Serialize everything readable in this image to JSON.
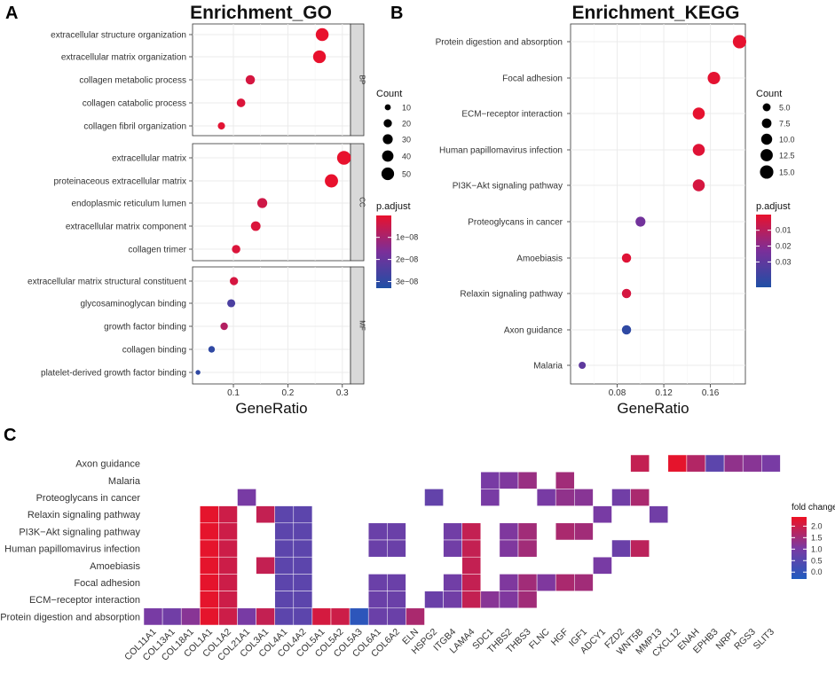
{
  "chart_data": [
    {
      "panel": "A",
      "type": "scatter",
      "title": "Enrichment_GO",
      "xlabel": "GeneRatio",
      "xlim": [
        0.025,
        0.315
      ],
      "xticks": [
        0.1,
        0.2,
        0.3
      ],
      "xtick_labels": [
        "0.1",
        "0.2",
        "0.3"
      ],
      "facets": [
        {
          "name": "BP",
          "terms": [
            {
              "label": "extracellular structure organization",
              "ratio": 0.263,
              "count": 52,
              "padj": 1e-10
            },
            {
              "label": "extracellular matrix organization",
              "ratio": 0.258,
              "count": 51,
              "padj": 1e-10
            },
            {
              "label": "collagen metabolic process",
              "ratio": 0.131,
              "count": 26,
              "padj": 3e-09
            },
            {
              "label": "collagen catabolic process",
              "ratio": 0.114,
              "count": 22,
              "padj": 2e-09
            },
            {
              "label": "collagen fibril organization",
              "ratio": 0.078,
              "count": 15,
              "padj": 1e-09
            }
          ]
        },
        {
          "name": "CC",
          "terms": [
            {
              "label": "extracellular matrix",
              "ratio": 0.303,
              "count": 60,
              "padj": 1e-10
            },
            {
              "label": "proteinaceous extracellular matrix",
              "ratio": 0.28,
              "count": 55,
              "padj": 1e-10
            },
            {
              "label": "endoplasmic reticulum lumen",
              "ratio": 0.153,
              "count": 30,
              "padj": 4e-09
            },
            {
              "label": "extracellular matrix component",
              "ratio": 0.141,
              "count": 28,
              "padj": 2e-09
            },
            {
              "label": "collagen trimer",
              "ratio": 0.105,
              "count": 21,
              "padj": 2e-09
            }
          ]
        },
        {
          "name": "MF",
          "terms": [
            {
              "label": "extracellular matrix structural constituent",
              "ratio": 0.101,
              "count": 20,
              "padj": 3e-09
            },
            {
              "label": "glycosaminoglycan binding",
              "ratio": 0.096,
              "count": 19,
              "padj": 2.5e-08
            },
            {
              "label": "growth factor binding",
              "ratio": 0.083,
              "count": 16,
              "padj": 8e-09
            },
            {
              "label": "collagen binding",
              "ratio": 0.06,
              "count": 12,
              "padj": 3e-08
            },
            {
              "label": "platelet-derived growth factor binding",
              "ratio": 0.035,
              "count": 6,
              "padj": 3e-08
            }
          ]
        }
      ],
      "legend_count": {
        "title": "Count",
        "values": [
          10,
          20,
          30,
          40,
          50
        ],
        "labels": [
          "10",
          "20",
          "30",
          "40",
          "50"
        ]
      },
      "legend_padj": {
        "title": "p.adjust",
        "min": 1e-10,
        "max": 3.3e-08,
        "ticks": [
          1e-08,
          2e-08,
          3e-08
        ],
        "labels": [
          "1e−08",
          "2e−08",
          "3e−08"
        ]
      }
    },
    {
      "panel": "B",
      "type": "scatter",
      "title": "Enrichment_KEGG",
      "xlabel": "GeneRatio",
      "xlim": [
        0.04,
        0.19
      ],
      "xticks": [
        0.08,
        0.12,
        0.16
      ],
      "xtick_labels": [
        "0.08",
        "0.12",
        "0.16"
      ],
      "terms": [
        {
          "label": "Protein digestion and absorption",
          "ratio": 0.185,
          "count": 15,
          "padj": 0.0005
        },
        {
          "label": "Focal adhesion",
          "ratio": 0.163,
          "count": 13,
          "padj": 0.001
        },
        {
          "label": "ECM-receptor interaction",
          "ratio": 0.15,
          "count": 12,
          "padj": 0.0005
        },
        {
          "label": "Human papillomavirus infection",
          "ratio": 0.15,
          "count": 12,
          "padj": 0.002
        },
        {
          "label": "PI3K-Akt signaling pathway",
          "ratio": 0.15,
          "count": 12,
          "padj": 0.004
        },
        {
          "label": "Proteoglycans in cancer",
          "ratio": 0.1,
          "count": 8,
          "padj": 0.025
        },
        {
          "label": "Amoebiasis",
          "ratio": 0.088,
          "count": 7,
          "padj": 0.002
        },
        {
          "label": "Relaxin signaling pathway",
          "ratio": 0.088,
          "count": 7,
          "padj": 0.004
        },
        {
          "label": "Axon guidance",
          "ratio": 0.088,
          "count": 7,
          "padj": 0.042
        },
        {
          "label": "Malaria",
          "ratio": 0.05,
          "count": 4,
          "padj": 0.03
        }
      ],
      "legend_count": {
        "title": "Count",
        "values": [
          5,
          7.5,
          10,
          12.5,
          15
        ],
        "labels": [
          "5.0",
          "7.5",
          "10.0",
          "12.5",
          "15.0"
        ]
      },
      "legend_padj": {
        "title": "p.adjust",
        "min": 0.0001,
        "max": 0.046,
        "ticks": [
          0.01,
          0.02,
          0.03
        ],
        "labels": [
          "0.01",
          "0.02",
          "0.03"
        ]
      }
    },
    {
      "panel": "C",
      "type": "heatmap",
      "rows": [
        "Axon guidance",
        "Malaria",
        "Proteoglycans in cancer",
        "Relaxin signaling pathway",
        "PI3K−Akt signaling pathway",
        "Human papillomavirus infection",
        "Amoebiasis",
        "Focal adhesion",
        "ECM−receptor interaction",
        "Protein digestion and absorption"
      ],
      "columns": [
        "COL11A1",
        "COL13A1",
        "COL18A1",
        "COL1A1",
        "COL1A2",
        "COL21A1",
        "COL3A1",
        "COL4A1",
        "COL4A2",
        "COL5A1",
        "COL5A2",
        "COL5A3",
        "COL6A1",
        "COL6A2",
        "ELN",
        "HSPG2",
        "ITGB4",
        "LAMA4",
        "SDC1",
        "THBS2",
        "THBS3",
        "FLNC",
        "HGF",
        "IGF1",
        "ADCY1",
        "FZD2",
        "WNT5B",
        "MMP13",
        "CXCL12",
        "ENAH",
        "EPHB3",
        "NRP1",
        "RGS3",
        "SLIT3"
      ],
      "values": [
        [
          null,
          null,
          null,
          null,
          null,
          null,
          null,
          null,
          null,
          null,
          null,
          null,
          null,
          null,
          null,
          null,
          null,
          null,
          null,
          null,
          null,
          null,
          null,
          null,
          null,
          null,
          1.9,
          null,
          2.3,
          1.7,
          0.6,
          1.3,
          1.2,
          1.0
        ],
        [
          null,
          null,
          null,
          null,
          null,
          null,
          null,
          null,
          null,
          null,
          null,
          null,
          null,
          null,
          null,
          null,
          null,
          null,
          1.0,
          1.1,
          1.4,
          null,
          1.5,
          null,
          null,
          null,
          null,
          null,
          null,
          null,
          null,
          null,
          null,
          null
        ],
        [
          null,
          null,
          null,
          null,
          null,
          1.0,
          null,
          null,
          null,
          null,
          null,
          null,
          null,
          null,
          null,
          0.7,
          null,
          null,
          1.0,
          null,
          null,
          1.0,
          1.3,
          1.2,
          null,
          0.9,
          1.6,
          null,
          null,
          null,
          null,
          null,
          null,
          null
        ],
        [
          null,
          null,
          null,
          2.3,
          2.0,
          null,
          1.9,
          0.6,
          0.6,
          null,
          null,
          null,
          null,
          null,
          null,
          null,
          null,
          null,
          null,
          null,
          null,
          null,
          null,
          null,
          1.0,
          null,
          null,
          0.9,
          null,
          null,
          null,
          null,
          null,
          null
        ],
        [
          null,
          null,
          null,
          2.3,
          2.0,
          null,
          null,
          0.6,
          0.6,
          null,
          null,
          null,
          0.8,
          0.8,
          null,
          null,
          0.9,
          1.9,
          null,
          1.1,
          1.5,
          null,
          1.6,
          1.5,
          null,
          null,
          null,
          null,
          null,
          null,
          null,
          null,
          null,
          null
        ],
        [
          null,
          null,
          null,
          2.3,
          2.0,
          null,
          null,
          0.6,
          0.6,
          null,
          null,
          null,
          0.8,
          0.8,
          null,
          null,
          0.9,
          1.9,
          null,
          1.1,
          1.5,
          null,
          null,
          null,
          null,
          0.8,
          1.8,
          null,
          null,
          null,
          null,
          null,
          null,
          null
        ],
        [
          null,
          null,
          null,
          2.3,
          2.0,
          null,
          1.9,
          0.6,
          0.6,
          null,
          null,
          null,
          null,
          null,
          null,
          null,
          null,
          1.9,
          null,
          null,
          null,
          null,
          null,
          null,
          1.0,
          null,
          null,
          null,
          null,
          null,
          null,
          null,
          null,
          null
        ],
        [
          null,
          null,
          null,
          2.3,
          2.0,
          null,
          null,
          0.6,
          0.6,
          null,
          null,
          null,
          0.8,
          0.8,
          null,
          null,
          0.9,
          1.9,
          null,
          1.1,
          1.5,
          1.1,
          1.6,
          1.5,
          null,
          null,
          null,
          null,
          null,
          null,
          null,
          null,
          null,
          null
        ],
        [
          null,
          null,
          null,
          2.3,
          2.0,
          null,
          null,
          0.6,
          0.6,
          null,
          null,
          null,
          0.8,
          0.8,
          null,
          0.8,
          0.9,
          1.9,
          1.2,
          1.1,
          1.5,
          null,
          null,
          null,
          null,
          null,
          null,
          null,
          null,
          null,
          null,
          null,
          null,
          null
        ],
        [
          1.0,
          0.9,
          1.2,
          2.3,
          2.0,
          1.0,
          1.9,
          0.6,
          0.6,
          2.1,
          2.0,
          -0.1,
          0.8,
          0.8,
          1.6,
          null,
          null,
          null,
          null,
          null,
          null,
          null,
          null,
          null,
          null,
          null,
          null,
          null,
          null,
          null,
          null,
          null,
          null,
          null
        ]
      ],
      "legend": {
        "title": "fold change",
        "min": -0.3,
        "max": 2.4,
        "ticks": [
          0.0,
          0.5,
          1.0,
          1.5,
          2.0
        ],
        "labels": [
          "0.0",
          "0.5",
          "1.0",
          "1.5",
          "2.0"
        ]
      }
    }
  ],
  "colors": {
    "high": "#e8112d",
    "mid": "#7a2f9a",
    "low": "#1f4fa5",
    "heat_low": "#1f5bbf",
    "heat_mid": "#7b3aa3",
    "heat_high": "#ee1122",
    "grid": "#ebebeb",
    "strip_bg": "#d9d9d9"
  },
  "labels": {
    "panel_a": "A",
    "panel_b": "B",
    "panel_c": "C"
  }
}
